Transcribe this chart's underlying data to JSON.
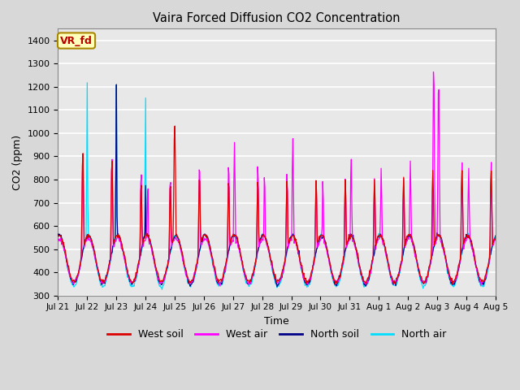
{
  "title": "Vaira Forced Diffusion CO2 Concentration",
  "xlabel": "Time",
  "ylabel": "CO2 (ppm)",
  "ylim": [
    300,
    1450
  ],
  "yticks": [
    300,
    400,
    500,
    600,
    700,
    800,
    900,
    1000,
    1100,
    1200,
    1300,
    1400
  ],
  "label_tag": "VR_fd",
  "label_tag_color": "#bb0000",
  "label_tag_bg": "#ffffbb",
  "label_tag_border": "#aa8800",
  "line_colors": {
    "west_soil": "#dd0000",
    "west_air": "#ff00ff",
    "north_soil": "#000088",
    "north_air": "#00ddff"
  },
  "legend_labels": [
    "West soil",
    "West air",
    "North soil",
    "North air"
  ],
  "xtick_labels": [
    "Jul 21",
    "Jul 22",
    "Jul 23",
    "Jul 24",
    "Jul 25",
    "Jul 26",
    "Jul 27",
    "Jul 28",
    "Jul 29",
    "Jul 30",
    "Jul 31",
    "Aug 1",
    "Aug 2",
    "Aug 3",
    "Aug 4",
    "Aug 5"
  ],
  "n_days": 15,
  "pts_per_day": 48,
  "fig_bg_color": "#d8d8d8",
  "plot_bg_color": "#e8e8e8",
  "grid_color": "#ffffff",
  "figsize": [
    6.4,
    4.8
  ],
  "dpi": 100
}
